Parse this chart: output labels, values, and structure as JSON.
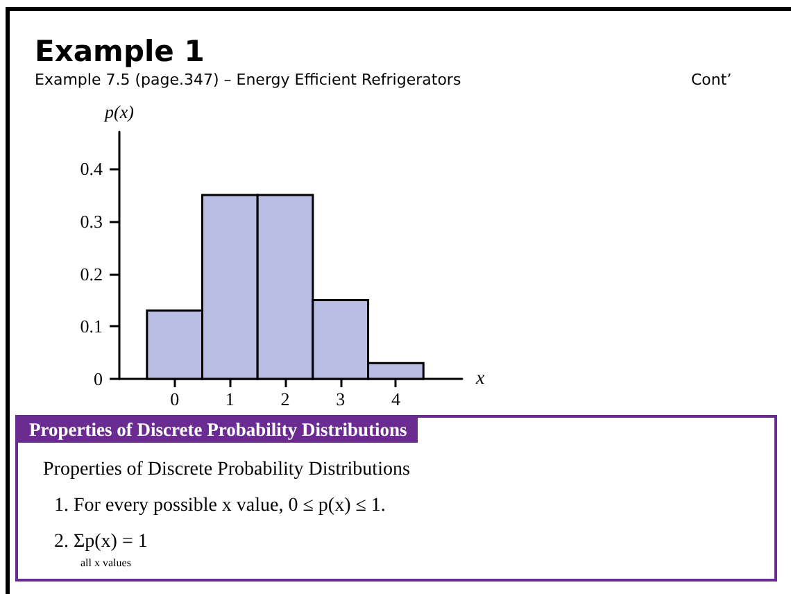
{
  "chart_data": {
    "type": "histogram",
    "title": "Example 1",
    "subtitle": "Example 7.5 (page.347) –  Energy Efficient Refrigerators",
    "xlabel": "x",
    "ylabel": "p(x)",
    "bins": [
      -0.5,
      0.5,
      1.5,
      2.5,
      3.5,
      4.5
    ],
    "values": [
      0.13,
      0.35,
      0.35,
      0.15,
      0.03
    ],
    "color": "#b9bde3",
    "xlim": [
      -1,
      5.2
    ],
    "xticks": [
      0,
      1,
      2,
      3,
      4
    ],
    "ylim": [
      0,
      0.47
    ],
    "yticks": [
      0,
      0.1,
      0.2,
      0.3,
      0.4
    ],
    "grid": false,
    "annotations": [
      "Cont’",
      "Properties of Discrete Probability Distributions",
      "Properties of Discrete Probability Distributions",
      "1. For every possible x value, 0 ≤ p(x) ≤ 1.",
      "2. Σp(x) = 1",
      "all x values"
    ]
  }
}
